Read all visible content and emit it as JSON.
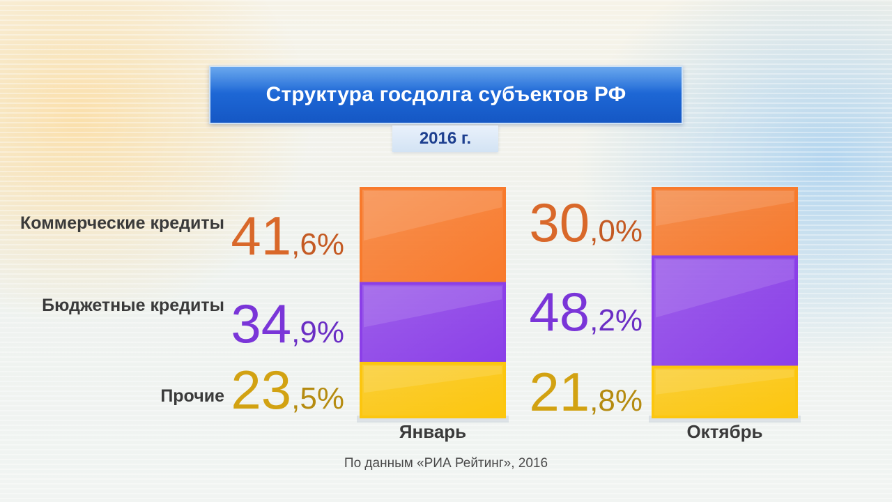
{
  "title": "Структура госдолга субъектов РФ",
  "year": "2016 г.",
  "source": "По данным «РИА Рейтинг», 2016",
  "colors": {
    "commercial": "#f87a2c",
    "budget": "#8b3fe8",
    "other": "#fcc60e"
  },
  "chart_data": {
    "type": "bar",
    "stacked": true,
    "categories": [
      "Январь",
      "Октябрь"
    ],
    "series": [
      {
        "name": "Коммерческие кредиты",
        "values": [
          41.6,
          30.0
        ],
        "labels": [
          "41,6%",
          "30,0%"
        ]
      },
      {
        "name": "Бюджетные кредиты",
        "values": [
          34.9,
          48.2
        ],
        "labels": [
          "34,9%",
          "48,2%"
        ]
      },
      {
        "name": "Прочие",
        "values": [
          23.5,
          21.8
        ],
        "labels": [
          "23,5%",
          "21,8%"
        ]
      }
    ],
    "unit": "%"
  }
}
